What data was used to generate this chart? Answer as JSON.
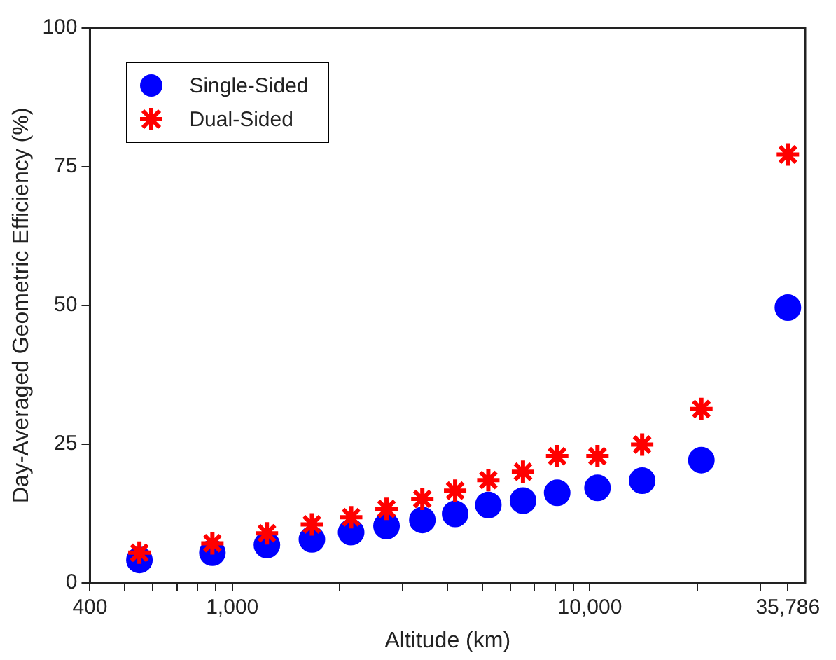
{
  "chart_data": {
    "type": "scatter",
    "xlabel": "Altitude (km)",
    "ylabel": "Day-Averaged Geometric Efficiency (%)",
    "log": "x",
    "xlim": [
      400,
      40000
    ],
    "ylim": [
      0,
      100
    ],
    "xticks": [
      {
        "value": 400,
        "label": "400"
      },
      {
        "value": 500,
        "label": null
      },
      {
        "value": 600,
        "label": null
      },
      {
        "value": 700,
        "label": null
      },
      {
        "value": 800,
        "label": null
      },
      {
        "value": 900,
        "label": null
      },
      {
        "value": 1000,
        "label": "1,000"
      },
      {
        "value": 2000,
        "label": null
      },
      {
        "value": 3000,
        "label": null
      },
      {
        "value": 4000,
        "label": null
      },
      {
        "value": 5000,
        "label": null
      },
      {
        "value": 6000,
        "label": null
      },
      {
        "value": 7000,
        "label": null
      },
      {
        "value": 8000,
        "label": null
      },
      {
        "value": 9000,
        "label": null
      },
      {
        "value": 10000,
        "label": "10,000"
      },
      {
        "value": 20000,
        "label": null
      },
      {
        "value": 30000,
        "label": null
      },
      {
        "value": 35786,
        "label": "35,786"
      }
    ],
    "yticks": [
      0,
      25,
      50,
      75,
      100
    ],
    "grid": false,
    "legend": "top left",
    "x": [
      550,
      880,
      1250,
      1670,
      2150,
      2700,
      3400,
      4200,
      5200,
      6500,
      8100,
      10500,
      14000,
      20500,
      35786
    ],
    "series": [
      {
        "name": "Single-Sided",
        "color": "#0000ff",
        "marker": "circle",
        "values": [
          4.1,
          5.4,
          6.8,
          7.8,
          9.1,
          10.2,
          11.3,
          12.4,
          14.0,
          14.8,
          16.2,
          17.1,
          18.4,
          22.1,
          49.6
        ]
      },
      {
        "name": "Dual-Sided",
        "color": "#ff0000",
        "marker": "cross",
        "values": [
          5.4,
          7.1,
          8.9,
          10.5,
          11.8,
          13.3,
          15.1,
          16.6,
          18.5,
          20.0,
          22.8,
          22.8,
          24.9,
          31.3,
          77.2
        ]
      }
    ]
  }
}
